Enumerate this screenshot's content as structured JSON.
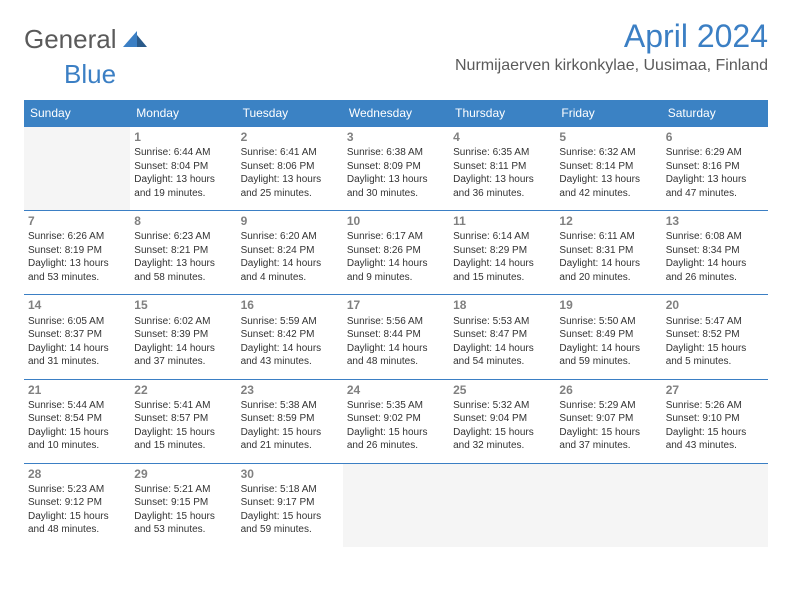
{
  "brand": {
    "part1": "General",
    "part2": "Blue"
  },
  "title": "April 2024",
  "location": "Nurmijaerven kirkonkylae, Uusimaa, Finland",
  "colors": {
    "header_bg": "#3b82c4",
    "accent": "#3b7fc4",
    "text": "#333333",
    "muted": "#808080",
    "blank_bg": "#f5f5f5",
    "page_bg": "#ffffff"
  },
  "weekdays": [
    "Sunday",
    "Monday",
    "Tuesday",
    "Wednesday",
    "Thursday",
    "Friday",
    "Saturday"
  ],
  "weeks": [
    [
      null,
      {
        "n": "1",
        "sr": "Sunrise: 6:44 AM",
        "ss": "Sunset: 8:04 PM",
        "dl": "Daylight: 13 hours and 19 minutes."
      },
      {
        "n": "2",
        "sr": "Sunrise: 6:41 AM",
        "ss": "Sunset: 8:06 PM",
        "dl": "Daylight: 13 hours and 25 minutes."
      },
      {
        "n": "3",
        "sr": "Sunrise: 6:38 AM",
        "ss": "Sunset: 8:09 PM",
        "dl": "Daylight: 13 hours and 30 minutes."
      },
      {
        "n": "4",
        "sr": "Sunrise: 6:35 AM",
        "ss": "Sunset: 8:11 PM",
        "dl": "Daylight: 13 hours and 36 minutes."
      },
      {
        "n": "5",
        "sr": "Sunrise: 6:32 AM",
        "ss": "Sunset: 8:14 PM",
        "dl": "Daylight: 13 hours and 42 minutes."
      },
      {
        "n": "6",
        "sr": "Sunrise: 6:29 AM",
        "ss": "Sunset: 8:16 PM",
        "dl": "Daylight: 13 hours and 47 minutes."
      }
    ],
    [
      {
        "n": "7",
        "sr": "Sunrise: 6:26 AM",
        "ss": "Sunset: 8:19 PM",
        "dl": "Daylight: 13 hours and 53 minutes."
      },
      {
        "n": "8",
        "sr": "Sunrise: 6:23 AM",
        "ss": "Sunset: 8:21 PM",
        "dl": "Daylight: 13 hours and 58 minutes."
      },
      {
        "n": "9",
        "sr": "Sunrise: 6:20 AM",
        "ss": "Sunset: 8:24 PM",
        "dl": "Daylight: 14 hours and 4 minutes."
      },
      {
        "n": "10",
        "sr": "Sunrise: 6:17 AM",
        "ss": "Sunset: 8:26 PM",
        "dl": "Daylight: 14 hours and 9 minutes."
      },
      {
        "n": "11",
        "sr": "Sunrise: 6:14 AM",
        "ss": "Sunset: 8:29 PM",
        "dl": "Daylight: 14 hours and 15 minutes."
      },
      {
        "n": "12",
        "sr": "Sunrise: 6:11 AM",
        "ss": "Sunset: 8:31 PM",
        "dl": "Daylight: 14 hours and 20 minutes."
      },
      {
        "n": "13",
        "sr": "Sunrise: 6:08 AM",
        "ss": "Sunset: 8:34 PM",
        "dl": "Daylight: 14 hours and 26 minutes."
      }
    ],
    [
      {
        "n": "14",
        "sr": "Sunrise: 6:05 AM",
        "ss": "Sunset: 8:37 PM",
        "dl": "Daylight: 14 hours and 31 minutes."
      },
      {
        "n": "15",
        "sr": "Sunrise: 6:02 AM",
        "ss": "Sunset: 8:39 PM",
        "dl": "Daylight: 14 hours and 37 minutes."
      },
      {
        "n": "16",
        "sr": "Sunrise: 5:59 AM",
        "ss": "Sunset: 8:42 PM",
        "dl": "Daylight: 14 hours and 43 minutes."
      },
      {
        "n": "17",
        "sr": "Sunrise: 5:56 AM",
        "ss": "Sunset: 8:44 PM",
        "dl": "Daylight: 14 hours and 48 minutes."
      },
      {
        "n": "18",
        "sr": "Sunrise: 5:53 AM",
        "ss": "Sunset: 8:47 PM",
        "dl": "Daylight: 14 hours and 54 minutes."
      },
      {
        "n": "19",
        "sr": "Sunrise: 5:50 AM",
        "ss": "Sunset: 8:49 PM",
        "dl": "Daylight: 14 hours and 59 minutes."
      },
      {
        "n": "20",
        "sr": "Sunrise: 5:47 AM",
        "ss": "Sunset: 8:52 PM",
        "dl": "Daylight: 15 hours and 5 minutes."
      }
    ],
    [
      {
        "n": "21",
        "sr": "Sunrise: 5:44 AM",
        "ss": "Sunset: 8:54 PM",
        "dl": "Daylight: 15 hours and 10 minutes."
      },
      {
        "n": "22",
        "sr": "Sunrise: 5:41 AM",
        "ss": "Sunset: 8:57 PM",
        "dl": "Daylight: 15 hours and 15 minutes."
      },
      {
        "n": "23",
        "sr": "Sunrise: 5:38 AM",
        "ss": "Sunset: 8:59 PM",
        "dl": "Daylight: 15 hours and 21 minutes."
      },
      {
        "n": "24",
        "sr": "Sunrise: 5:35 AM",
        "ss": "Sunset: 9:02 PM",
        "dl": "Daylight: 15 hours and 26 minutes."
      },
      {
        "n": "25",
        "sr": "Sunrise: 5:32 AM",
        "ss": "Sunset: 9:04 PM",
        "dl": "Daylight: 15 hours and 32 minutes."
      },
      {
        "n": "26",
        "sr": "Sunrise: 5:29 AM",
        "ss": "Sunset: 9:07 PM",
        "dl": "Daylight: 15 hours and 37 minutes."
      },
      {
        "n": "27",
        "sr": "Sunrise: 5:26 AM",
        "ss": "Sunset: 9:10 PM",
        "dl": "Daylight: 15 hours and 43 minutes."
      }
    ],
    [
      {
        "n": "28",
        "sr": "Sunrise: 5:23 AM",
        "ss": "Sunset: 9:12 PM",
        "dl": "Daylight: 15 hours and 48 minutes."
      },
      {
        "n": "29",
        "sr": "Sunrise: 5:21 AM",
        "ss": "Sunset: 9:15 PM",
        "dl": "Daylight: 15 hours and 53 minutes."
      },
      {
        "n": "30",
        "sr": "Sunrise: 5:18 AM",
        "ss": "Sunset: 9:17 PM",
        "dl": "Daylight: 15 hours and 59 minutes."
      },
      null,
      null,
      null,
      null
    ]
  ]
}
